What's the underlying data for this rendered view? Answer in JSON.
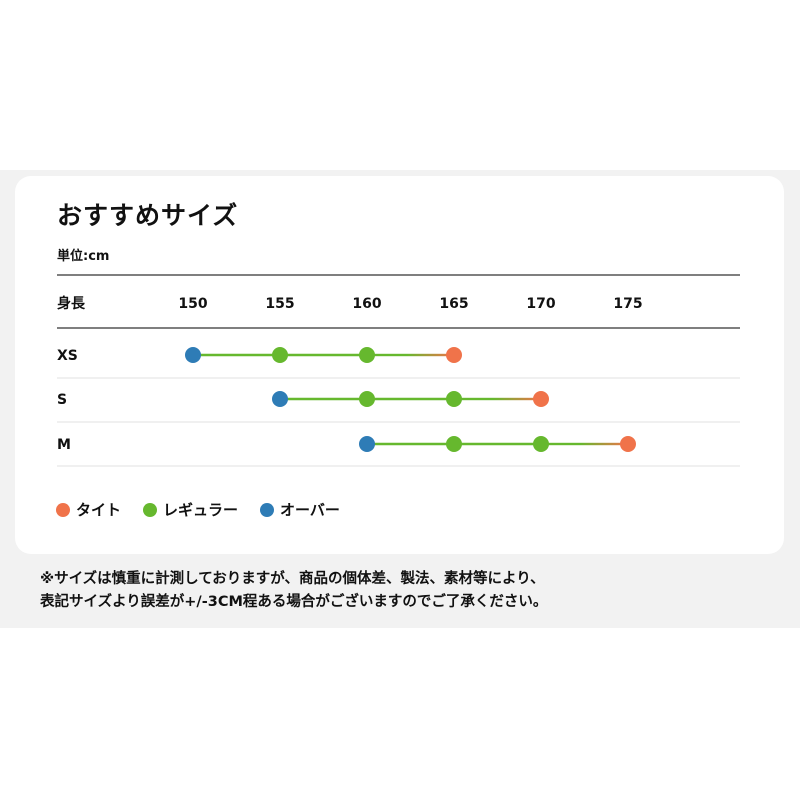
{
  "title": "おすすめサイズ",
  "unit_label": "単位:cm",
  "notes": [
    "※サイズは慎重に計測しておりますが、商品の個体差、製法、素材等により、",
    "表記サイズより誤差が+/-3CM程ある場合がございますのでご了承ください。"
  ],
  "colors": {
    "tight": "#f0734a",
    "regular": "#66b82e",
    "over": "#2e7cb6",
    "line": "#333333",
    "divider": "#e2e2e2"
  },
  "chart_data": {
    "type": "line",
    "xlabel": "身長",
    "x_ticks": [
      150,
      155,
      160,
      165,
      170,
      175
    ],
    "legend_position": "bottom-left",
    "legend": [
      {
        "key": "tight",
        "label": "タイト"
      },
      {
        "key": "regular",
        "label": "レギュラー"
      },
      {
        "key": "over",
        "label": "オーバー"
      }
    ],
    "rows": [
      {
        "size": "XS",
        "points": [
          {
            "x": 150,
            "fit": "over"
          },
          {
            "x": 155,
            "fit": "regular"
          },
          {
            "x": 160,
            "fit": "regular"
          },
          {
            "x": 165,
            "fit": "tight"
          }
        ]
      },
      {
        "size": "S",
        "points": [
          {
            "x": 155,
            "fit": "over"
          },
          {
            "x": 160,
            "fit": "regular"
          },
          {
            "x": 165,
            "fit": "regular"
          },
          {
            "x": 170,
            "fit": "tight"
          }
        ]
      },
      {
        "size": "M",
        "points": [
          {
            "x": 160,
            "fit": "over"
          },
          {
            "x": 165,
            "fit": "regular"
          },
          {
            "x": 170,
            "fit": "regular"
          },
          {
            "x": 175,
            "fit": "tight"
          }
        ]
      }
    ]
  }
}
